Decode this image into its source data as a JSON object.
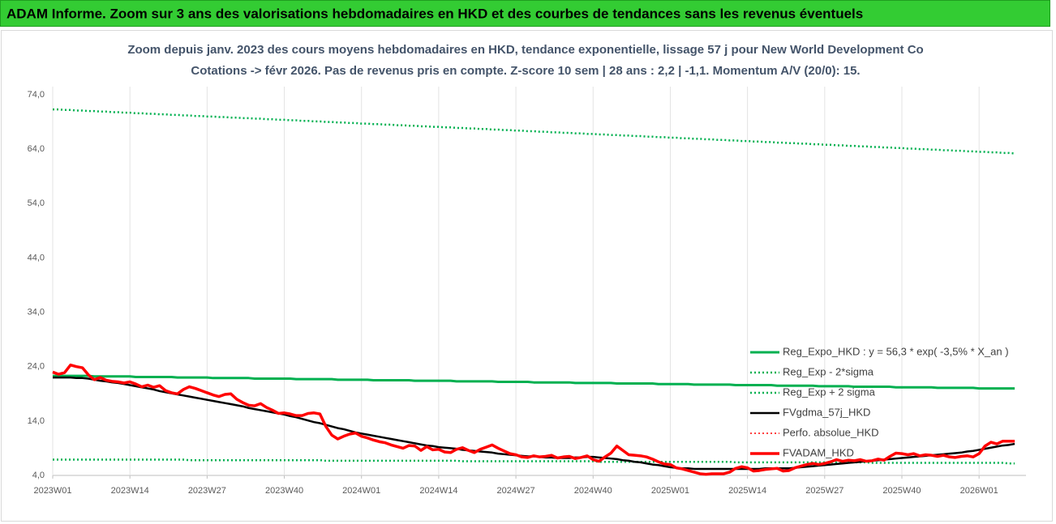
{
  "header": {
    "title": "ADAM Informe. Zoom sur 3 ans des valorisations hebdomadaires en HKD et des courbes de tendances sans les revenus éventuels"
  },
  "chart_data": {
    "type": "line",
    "title": "Zoom depuis janv. 2023 des cours moyens hebdomadaires en HKD, tendance exponentielle, lissage 57 j pour New World Development Co",
    "subtitle": "Cotations -> févr 2026. Pas de revenus pris en compte. Z-score 10 sem | 28 ans : 2,2 | -1,1. Momentum A/V (20/0): 15.",
    "categories": [
      "2023W01",
      null,
      null,
      null,
      null,
      null,
      null,
      null,
      null,
      null,
      null,
      null,
      null,
      "2023W14",
      null,
      null,
      null,
      null,
      null,
      null,
      null,
      null,
      null,
      null,
      null,
      null,
      "2023W27",
      null,
      null,
      null,
      null,
      null,
      null,
      null,
      null,
      null,
      null,
      null,
      null,
      "2023W40",
      null,
      null,
      null,
      null,
      null,
      null,
      null,
      null,
      null,
      null,
      null,
      null,
      "2024W01",
      null,
      null,
      null,
      null,
      null,
      null,
      null,
      null,
      null,
      null,
      null,
      null,
      "2024W14",
      null,
      null,
      null,
      null,
      null,
      null,
      null,
      null,
      null,
      null,
      null,
      null,
      "2024W27",
      null,
      null,
      null,
      null,
      null,
      null,
      null,
      null,
      null,
      null,
      null,
      null,
      "2024W40",
      null,
      null,
      null,
      null,
      null,
      null,
      null,
      null,
      null,
      null,
      null,
      null,
      "2025W01",
      null,
      null,
      null,
      null,
      null,
      null,
      null,
      null,
      null,
      null,
      null,
      null,
      "2025W14",
      null,
      null,
      null,
      null,
      null,
      null,
      null,
      null,
      null,
      null,
      null,
      null,
      "2025W27",
      null,
      null,
      null,
      null,
      null,
      null,
      null,
      null,
      null,
      null,
      null,
      null,
      "2025W40",
      null,
      null,
      null,
      null,
      null,
      null,
      null,
      null,
      null,
      null,
      null,
      null,
      "2026W01",
      null,
      null,
      null,
      null,
      null,
      null
    ],
    "ylim": [
      4,
      74
    ],
    "yticks": [
      {
        "value": 4,
        "label": "4,0"
      },
      {
        "value": 14,
        "label": "14,0"
      },
      {
        "value": 24,
        "label": "24,0"
      },
      {
        "value": 34,
        "label": "34,0"
      },
      {
        "value": 44,
        "label": "44,0"
      },
      {
        "value": 54,
        "label": "54,0"
      },
      {
        "value": 64,
        "label": "64,0"
      },
      {
        "value": 74,
        "label": "74,0"
      }
    ],
    "grid": "x",
    "legend": "right",
    "series": [
      {
        "name": "Reg_Expo_HKD : y = 56,3 * exp( -3,5% *  X_an )",
        "color": "#00b050",
        "line_style": "solid",
        "line_width": 3,
        "values": [
          22.3,
          22.3,
          22.3,
          22.3,
          22.3,
          22.3,
          22.3,
          22.2,
          22.2,
          22.2,
          22.2,
          22.2,
          22.2,
          22.2,
          22.1,
          22.1,
          22.1,
          22.1,
          22.1,
          22.1,
          22.1,
          22.0,
          22.0,
          22.0,
          22.0,
          22.0,
          22.0,
          21.9,
          21.9,
          21.9,
          21.9,
          21.9,
          21.9,
          21.9,
          21.8,
          21.8,
          21.8,
          21.8,
          21.8,
          21.8,
          21.8,
          21.7,
          21.7,
          21.7,
          21.7,
          21.7,
          21.7,
          21.7,
          21.6,
          21.6,
          21.6,
          21.6,
          21.6,
          21.6,
          21.5,
          21.5,
          21.5,
          21.5,
          21.5,
          21.5,
          21.5,
          21.4,
          21.4,
          21.4,
          21.4,
          21.4,
          21.4,
          21.4,
          21.3,
          21.3,
          21.3,
          21.3,
          21.3,
          21.3,
          21.3,
          21.2,
          21.2,
          21.2,
          21.2,
          21.2,
          21.2,
          21.1,
          21.1,
          21.1,
          21.1,
          21.1,
          21.1,
          21.1,
          21.0,
          21.0,
          21.0,
          21.0,
          21.0,
          21.0,
          21.0,
          20.9,
          20.9,
          20.9,
          20.9,
          20.9,
          20.9,
          20.9,
          20.8,
          20.8,
          20.8,
          20.8,
          20.8,
          20.8,
          20.7,
          20.7,
          20.7,
          20.7,
          20.7,
          20.7,
          20.7,
          20.6,
          20.6,
          20.6,
          20.6,
          20.6,
          20.6,
          20.6,
          20.5,
          20.5,
          20.5,
          20.5,
          20.5,
          20.5,
          20.5,
          20.4,
          20.4,
          20.4,
          20.4,
          20.4,
          20.4,
          20.3,
          20.3,
          20.3,
          20.3,
          20.3,
          20.3,
          20.3,
          20.2,
          20.2,
          20.2,
          20.2,
          20.2,
          20.2,
          20.2,
          20.1,
          20.1,
          20.1,
          20.1,
          20.1,
          20.1,
          20.1,
          20.0,
          20.0,
          20.0,
          20.0,
          20.0,
          20.0,
          20.0
        ]
      },
      {
        "name": "Reg_Exp - 2*sigma",
        "color": "#00b050",
        "line_style": "dotted",
        "line_width": 2.5,
        "values": [
          6.9,
          6.9,
          6.9,
          6.9,
          6.9,
          6.9,
          6.9,
          6.9,
          6.9,
          6.9,
          6.9,
          6.9,
          6.9,
          6.9,
          6.9,
          6.9,
          6.9,
          6.9,
          6.9,
          6.9,
          6.9,
          6.9,
          6.9,
          6.8,
          6.8,
          6.8,
          6.8,
          6.8,
          6.8,
          6.8,
          6.8,
          6.8,
          6.8,
          6.8,
          6.8,
          6.8,
          6.8,
          6.8,
          6.8,
          6.8,
          6.8,
          6.8,
          6.8,
          6.8,
          6.8,
          6.8,
          6.7,
          6.7,
          6.7,
          6.7,
          6.7,
          6.7,
          6.7,
          6.7,
          6.7,
          6.7,
          6.7,
          6.7,
          6.7,
          6.7,
          6.7,
          6.7,
          6.7,
          6.7,
          6.7,
          6.7,
          6.7,
          6.7,
          6.7,
          6.6,
          6.6,
          6.6,
          6.6,
          6.6,
          6.6,
          6.6,
          6.6,
          6.6,
          6.6,
          6.6,
          6.6,
          6.6,
          6.6,
          6.6,
          6.6,
          6.6,
          6.6,
          6.6,
          6.6,
          6.6,
          6.6,
          6.6,
          6.5,
          6.5,
          6.5,
          6.5,
          6.5,
          6.5,
          6.5,
          6.5,
          6.5,
          6.5,
          6.5,
          6.5,
          6.5,
          6.5,
          6.5,
          6.5,
          6.5,
          6.5,
          6.5,
          6.5,
          6.5,
          6.5,
          6.5,
          6.4,
          6.4,
          6.4,
          6.4,
          6.4,
          6.4,
          6.4,
          6.4,
          6.4,
          6.4,
          6.4,
          6.4,
          6.4,
          6.4,
          6.4,
          6.4,
          6.4,
          6.4,
          6.4,
          6.4,
          6.4,
          6.4,
          6.4,
          6.3,
          6.3,
          6.3,
          6.3,
          6.3,
          6.3,
          6.3,
          6.3,
          6.3,
          6.3,
          6.3,
          6.3,
          6.3,
          6.3,
          6.3,
          6.3,
          6.3,
          6.3,
          6.3,
          6.3,
          6.3,
          6.3,
          6.3,
          6.2,
          6.2
        ]
      },
      {
        "name": "Reg_Exp + 2 sigma",
        "color": "#00b050",
        "line_style": "dotted",
        "line_width": 2.5,
        "values": [
          71.3,
          71.3,
          71.2,
          71.2,
          71.1,
          71.1,
          71.0,
          71.0,
          70.9,
          70.9,
          70.8,
          70.8,
          70.7,
          70.7,
          70.6,
          70.6,
          70.5,
          70.5,
          70.4,
          70.4,
          70.3,
          70.3,
          70.2,
          70.2,
          70.1,
          70.1,
          70.0,
          70.0,
          69.9,
          69.9,
          69.8,
          69.8,
          69.7,
          69.7,
          69.6,
          69.6,
          69.5,
          69.5,
          69.4,
          69.4,
          69.3,
          69.3,
          69.2,
          69.2,
          69.1,
          69.1,
          69.0,
          69.0,
          68.9,
          68.9,
          68.8,
          68.8,
          68.7,
          68.7,
          68.6,
          68.6,
          68.5,
          68.5,
          68.4,
          68.4,
          68.3,
          68.3,
          68.2,
          68.2,
          68.1,
          68.1,
          68.0,
          68.0,
          67.9,
          67.9,
          67.8,
          67.8,
          67.7,
          67.7,
          67.6,
          67.6,
          67.5,
          67.5,
          67.4,
          67.4,
          67.3,
          67.3,
          67.2,
          67.2,
          67.1,
          67.1,
          67.0,
          67.0,
          66.9,
          66.9,
          66.8,
          66.8,
          66.7,
          66.7,
          66.6,
          66.6,
          66.5,
          66.5,
          66.4,
          66.4,
          66.3,
          66.3,
          66.2,
          66.2,
          66.1,
          66.1,
          66.0,
          66.0,
          65.9,
          65.9,
          65.8,
          65.8,
          65.7,
          65.7,
          65.6,
          65.6,
          65.5,
          65.5,
          65.4,
          65.4,
          65.3,
          65.3,
          65.2,
          65.2,
          65.1,
          65.1,
          65.0,
          65.0,
          64.9,
          64.9,
          64.8,
          64.8,
          64.7,
          64.7,
          64.6,
          64.6,
          64.5,
          64.5,
          64.4,
          64.4,
          64.3,
          64.3,
          64.2,
          64.2,
          64.1,
          64.1,
          64.0,
          64.0,
          63.9,
          63.9,
          63.8,
          63.8,
          63.7,
          63.7,
          63.6,
          63.6,
          63.5,
          63.5,
          63.4,
          63.4,
          63.3,
          63.3,
          63.2
        ]
      },
      {
        "name": "FVgdma_57j_HKD",
        "color": "#000000",
        "line_style": "solid",
        "line_width": 2.5,
        "values": [
          22.0,
          22.0,
          22.0,
          22.0,
          21.9,
          21.9,
          21.8,
          21.6,
          21.4,
          21.3,
          21.1,
          21.0,
          20.8,
          20.6,
          20.4,
          20.2,
          20.0,
          19.8,
          19.5,
          19.3,
          19.1,
          18.9,
          18.7,
          18.5,
          18.3,
          18.1,
          17.9,
          17.7,
          17.5,
          17.3,
          17.1,
          16.9,
          16.7,
          16.4,
          16.2,
          16.0,
          15.8,
          15.6,
          15.4,
          15.2,
          14.9,
          14.7,
          14.4,
          14.1,
          13.8,
          13.6,
          13.3,
          13.0,
          12.7,
          12.5,
          12.2,
          11.9,
          11.7,
          11.5,
          11.3,
          11.1,
          10.9,
          10.7,
          10.5,
          10.3,
          10.1,
          9.9,
          9.7,
          9.5,
          9.4,
          9.2,
          9.1,
          9.0,
          8.9,
          8.7,
          8.6,
          8.5,
          8.4,
          8.3,
          8.2,
          8.0,
          7.9,
          7.8,
          7.7,
          7.6,
          7.5,
          7.5,
          7.4,
          7.3,
          7.3,
          7.2,
          7.2,
          7.2,
          7.3,
          7.3,
          7.4,
          7.4,
          7.3,
          7.2,
          7.1,
          7.0,
          6.8,
          6.7,
          6.5,
          6.4,
          6.2,
          6.0,
          5.9,
          5.7,
          5.5,
          5.4,
          5.3,
          5.3,
          5.2,
          5.2,
          5.2,
          5.2,
          5.2,
          5.2,
          5.2,
          5.2,
          5.2,
          5.2,
          5.2,
          5.2,
          5.3,
          5.3,
          5.3,
          5.3,
          5.3,
          5.4,
          5.5,
          5.6,
          5.7,
          5.8,
          5.9,
          6.0,
          6.1,
          6.2,
          6.3,
          6.4,
          6.5,
          6.6,
          6.7,
          6.8,
          6.9,
          7.0,
          7.1,
          7.2,
          7.3,
          7.4,
          7.5,
          7.6,
          7.7,
          7.8,
          7.9,
          8.0,
          8.1,
          8.2,
          8.4,
          8.5,
          8.7,
          8.9,
          9.1,
          9.3,
          9.5,
          9.6,
          9.8
        ]
      },
      {
        "name": "Perfo. absolue_HKD",
        "color": "#ff0000",
        "line_style": "dotted",
        "line_width": 1.5,
        "values": [
          23.0,
          22.6,
          22.9,
          24.3,
          24.0,
          23.8,
          22.5,
          21.6,
          22.0,
          21.5,
          21.3,
          21.2,
          21.0,
          21.2,
          20.8,
          20.3,
          20.6,
          20.2,
          20.5,
          19.6,
          19.2,
          19.0,
          19.8,
          20.3,
          20.0,
          19.6,
          19.2,
          18.8,
          18.5,
          18.9,
          19.0,
          18.0,
          17.4,
          16.9,
          16.8,
          17.2,
          16.5,
          16.0,
          15.4,
          15.5,
          15.3,
          15.0,
          15.0,
          15.4,
          15.5,
          15.3,
          13.0,
          11.4,
          10.7,
          11.2,
          11.6,
          11.8,
          11.2,
          10.9,
          10.5,
          10.2,
          10.0,
          9.6,
          9.3,
          9.0,
          9.5,
          9.4,
          8.6,
          9.3,
          8.7,
          8.8,
          8.3,
          8.2,
          8.8,
          9.1,
          8.6,
          8.2,
          8.8,
          9.2,
          9.6,
          9.0,
          8.5,
          8.0,
          7.8,
          7.4,
          7.3,
          7.6,
          7.4,
          7.5,
          7.7,
          7.2,
          7.4,
          7.5,
          7.1,
          7.3,
          7.6,
          6.9,
          6.6,
          7.4,
          8.1,
          9.4,
          8.6,
          7.8,
          7.7,
          7.6,
          7.4,
          7.0,
          6.5,
          6.1,
          6.0,
          5.4,
          5.2,
          4.9,
          4.6,
          4.3,
          4.2,
          4.3,
          4.3,
          4.3,
          4.6,
          5.3,
          5.6,
          5.4,
          4.8,
          4.9,
          5.1,
          5.2,
          5.3,
          4.8,
          4.9,
          5.4,
          5.7,
          6.0,
          6.2,
          6.0,
          6.2,
          6.5,
          6.9,
          6.6,
          6.8,
          6.7,
          6.9,
          6.6,
          6.7,
          7.0,
          6.8,
          7.5,
          8.1,
          8.0,
          7.8,
          8.0,
          7.6,
          7.8,
          7.7,
          7.5,
          7.7,
          7.4,
          7.3,
          7.5,
          7.6,
          7.4,
          8.0,
          9.4,
          10.1,
          9.8,
          10.3,
          10.3,
          10.3
        ]
      },
      {
        "name": "FVADAM_HKD",
        "color": "#ff0000",
        "line_style": "solid",
        "line_width": 3.5,
        "values": [
          23.0,
          22.6,
          22.9,
          24.3,
          24.0,
          23.8,
          22.5,
          21.6,
          22.0,
          21.5,
          21.3,
          21.2,
          21.0,
          21.2,
          20.8,
          20.3,
          20.6,
          20.2,
          20.5,
          19.6,
          19.2,
          19.0,
          19.8,
          20.3,
          20.0,
          19.6,
          19.2,
          18.8,
          18.5,
          18.9,
          19.0,
          18.0,
          17.4,
          16.9,
          16.8,
          17.2,
          16.5,
          16.0,
          15.4,
          15.5,
          15.3,
          15.0,
          15.0,
          15.4,
          15.5,
          15.3,
          13.0,
          11.4,
          10.7,
          11.2,
          11.6,
          11.8,
          11.2,
          10.9,
          10.5,
          10.2,
          10.0,
          9.6,
          9.3,
          9.0,
          9.5,
          9.4,
          8.6,
          9.3,
          8.7,
          8.8,
          8.3,
          8.2,
          8.8,
          9.1,
          8.6,
          8.2,
          8.8,
          9.2,
          9.6,
          9.0,
          8.5,
          8.0,
          7.8,
          7.4,
          7.3,
          7.6,
          7.4,
          7.5,
          7.7,
          7.2,
          7.4,
          7.5,
          7.1,
          7.3,
          7.6,
          6.9,
          6.6,
          7.4,
          8.1,
          9.4,
          8.6,
          7.8,
          7.7,
          7.6,
          7.4,
          7.0,
          6.5,
          6.1,
          6.0,
          5.4,
          5.2,
          4.9,
          4.6,
          4.3,
          4.2,
          4.3,
          4.3,
          4.3,
          4.6,
          5.3,
          5.6,
          5.4,
          4.8,
          4.9,
          5.1,
          5.2,
          5.3,
          4.8,
          4.9,
          5.4,
          5.7,
          6.0,
          6.2,
          6.0,
          6.2,
          6.5,
          6.9,
          6.6,
          6.8,
          6.7,
          6.9,
          6.6,
          6.7,
          7.0,
          6.8,
          7.5,
          8.1,
          8.0,
          7.8,
          8.0,
          7.6,
          7.8,
          7.7,
          7.5,
          7.7,
          7.4,
          7.3,
          7.5,
          7.6,
          7.4,
          8.0,
          9.4,
          10.1,
          9.8,
          10.3,
          10.3,
          10.3
        ]
      }
    ]
  }
}
